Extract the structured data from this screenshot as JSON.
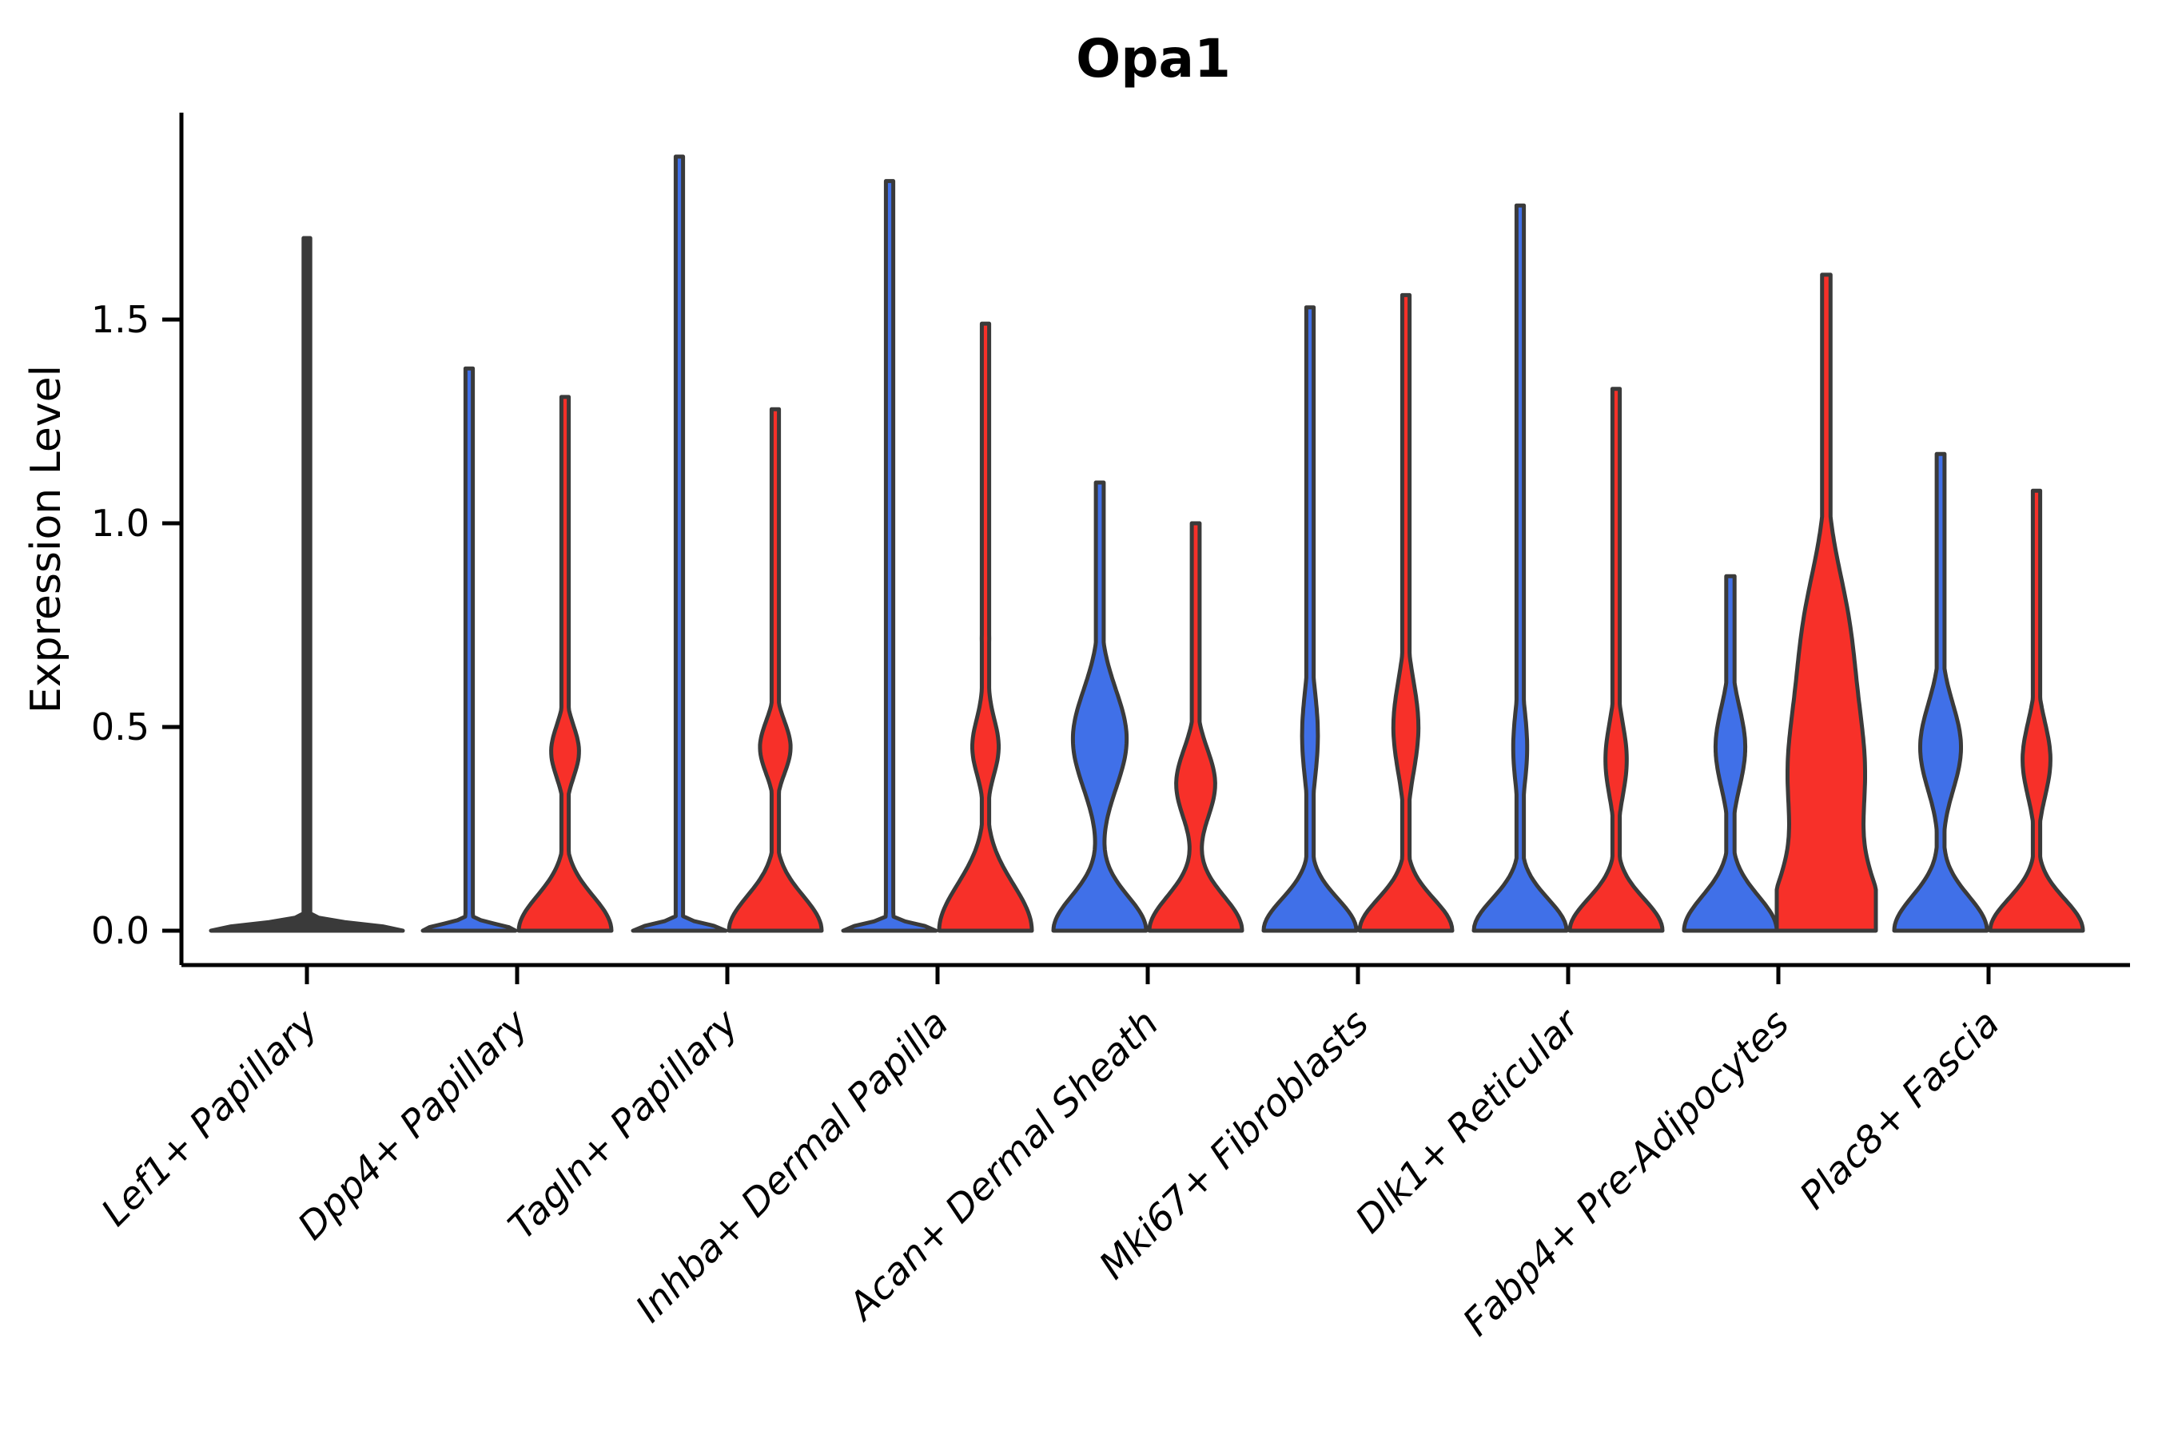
{
  "figure": {
    "title": "Opa1",
    "ylabel": "Expression Level"
  },
  "chart_data": {
    "type": "violin",
    "title": "Opa1",
    "xlabel": "",
    "ylabel": "Expression Level",
    "ylim": [
      -0.09,
      1.99
    ],
    "grid": false,
    "legend_position": "none",
    "yticks": {
      "values": [
        0.0,
        0.5,
        1.0,
        1.5
      ],
      "labels": [
        "0.0",
        "0.5",
        "1.0",
        "1.5"
      ]
    },
    "colors": {
      "blue": "#4070e8",
      "red": "#f73029",
      "outline": "#3a3a3a",
      "background": "#ffffff"
    },
    "categories": [
      "Lef1+ Papillary",
      "Dpp4+ Papillary",
      "Tagln+ Papillary",
      "Inhba+ Dermal Papilla",
      "Acan+ Dermal Sheath",
      "Mki67+ Fibroblasts",
      "Dlk1+ Reticular",
      "Fabp4+ Pre-Adipocytes",
      "Plac8+ Fascia"
    ],
    "groups": [
      {
        "category": "Lef1+ Papillary",
        "violins": [
          {
            "split": "single",
            "color": "outline",
            "max": 1.7,
            "halfwidth": 120,
            "tail": 0.035,
            "bulges": [
              [
                0,
                0.022,
                1.0
              ]
            ]
          }
        ]
      },
      {
        "category": "Dpp4+ Papillary",
        "violins": [
          {
            "split": "blue",
            "color": "blue",
            "max": 1.38,
            "halfwidth": 58,
            "tail": 0.08,
            "bulges": [
              [
                0,
                0.022,
                1.0
              ]
            ]
          },
          {
            "split": "red",
            "color": "red",
            "max": 1.31,
            "halfwidth": 58,
            "tail": 0.08,
            "bulges": [
              [
                0,
                0.12,
                1.0
              ],
              [
                0.44,
                0.09,
                0.3
              ]
            ]
          }
        ]
      },
      {
        "category": "Tagln+ Papillary",
        "violins": [
          {
            "split": "blue",
            "color": "blue",
            "max": 1.9,
            "halfwidth": 58,
            "tail": 0.08,
            "bulges": [
              [
                0,
                0.022,
                1.0
              ]
            ]
          },
          {
            "split": "red",
            "color": "red",
            "max": 1.28,
            "halfwidth": 58,
            "tail": 0.08,
            "bulges": [
              [
                0,
                0.12,
                1.0
              ],
              [
                0.45,
                0.09,
                0.33
              ]
            ]
          }
        ]
      },
      {
        "category": "Inhba+ Dermal Papilla",
        "violins": [
          {
            "split": "blue",
            "color": "blue",
            "max": 1.84,
            "halfwidth": 58,
            "tail": 0.08,
            "bulges": [
              [
                0,
                0.022,
                1.0
              ]
            ]
          },
          {
            "split": "red",
            "color": "red",
            "max": 1.49,
            "halfwidth": 58,
            "tail": 0.08,
            "bulges": [
              [
                0,
                0.16,
                1.0
              ],
              [
                0.45,
                0.1,
                0.28
              ],
              [
                0.72,
                0.16,
                0.08
              ]
            ]
          }
        ]
      },
      {
        "category": "Acan+ Dermal Sheath",
        "violins": [
          {
            "split": "blue",
            "color": "blue",
            "max": 1.1,
            "halfwidth": 58,
            "tail": 0.085,
            "bulges": [
              [
                0,
                0.12,
                1.0
              ],
              [
                0.47,
                0.17,
                0.58
              ]
            ]
          },
          {
            "split": "red",
            "color": "red",
            "max": 1.0,
            "halfwidth": 58,
            "tail": 0.085,
            "bulges": [
              [
                0,
                0.12,
                1.0
              ],
              [
                0.36,
                0.12,
                0.42
              ]
            ]
          }
        ]
      },
      {
        "category": "Mki67+ Fibroblasts",
        "violins": [
          {
            "split": "blue",
            "color": "blue",
            "max": 1.53,
            "halfwidth": 58,
            "tail": 0.08,
            "bulges": [
              [
                0,
                0.11,
                1.0
              ],
              [
                0.48,
                0.16,
                0.17
              ]
            ]
          },
          {
            "split": "red",
            "color": "red",
            "max": 1.56,
            "halfwidth": 58,
            "tail": 0.08,
            "bulges": [
              [
                0,
                0.11,
                1.0
              ],
              [
                0.5,
                0.16,
                0.27
              ]
            ]
          }
        ]
      },
      {
        "category": "Dlk1+ Reticular",
        "violins": [
          {
            "split": "blue",
            "color": "blue",
            "max": 1.78,
            "halfwidth": 58,
            "tail": 0.08,
            "bulges": [
              [
                0,
                0.11,
                1.0
              ],
              [
                0.45,
                0.14,
                0.15
              ]
            ]
          },
          {
            "split": "red",
            "color": "red",
            "max": 1.33,
            "halfwidth": 58,
            "tail": 0.08,
            "bulges": [
              [
                0,
                0.11,
                1.0
              ],
              [
                0.42,
                0.13,
                0.23
              ]
            ]
          }
        ]
      },
      {
        "category": "Fabp4+ Pre-Adipocytes",
        "violins": [
          {
            "split": "blue",
            "color": "blue",
            "max": 0.87,
            "halfwidth": 58,
            "tail": 0.09,
            "bulges": [
              [
                0,
                0.12,
                1.0
              ],
              [
                0.45,
                0.14,
                0.32
              ]
            ]
          },
          {
            "split": "red",
            "color": "red",
            "max": 1.61,
            "halfwidth": 62,
            "tail": 0.085,
            "bulges": [
              [
                0,
                0.18,
                1.0
              ],
              [
                0.38,
                0.28,
                0.75
              ],
              [
                0.75,
                0.22,
                0.35
              ]
            ]
          }
        ]
      },
      {
        "category": "Plac8+ Fascia",
        "violins": [
          {
            "split": "blue",
            "color": "blue",
            "max": 1.17,
            "halfwidth": 58,
            "tail": 0.085,
            "bulges": [
              [
                0,
                0.12,
                1.0
              ],
              [
                0.45,
                0.15,
                0.44
              ]
            ]
          },
          {
            "split": "red",
            "color": "red",
            "max": 1.08,
            "halfwidth": 58,
            "tail": 0.08,
            "bulges": [
              [
                0,
                0.11,
                1.0
              ],
              [
                0.42,
                0.13,
                0.3
              ]
            ]
          }
        ]
      }
    ]
  }
}
